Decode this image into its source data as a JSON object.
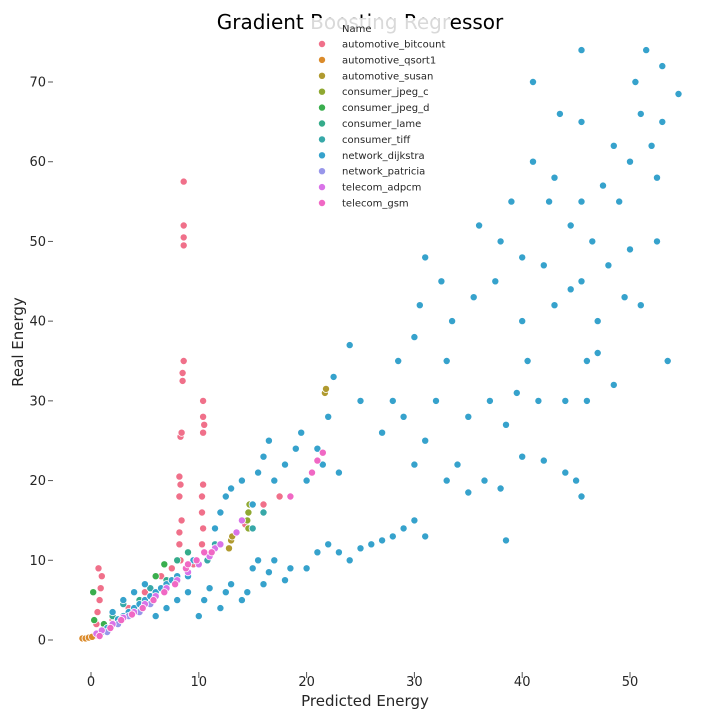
{
  "chart_data": {
    "type": "scatter",
    "title": "Gradient Boosting Regressor",
    "xlabel": "Predicted Energy",
    "ylabel": "Real Energy",
    "xlim": [
      -3,
      56
    ],
    "ylim": [
      -4,
      76
    ],
    "xticks": [
      0,
      10,
      20,
      30,
      40,
      50
    ],
    "yticks": [
      0,
      10,
      20,
      30,
      40,
      50,
      60,
      70
    ],
    "grid": false,
    "legend_position": "top-center",
    "legend_title": "Name",
    "series": [
      {
        "name": "automotive_bitcount",
        "color": "#f0708a",
        "points": [
          [
            0.3,
            0.5
          ],
          [
            0.5,
            2.0
          ],
          [
            0.6,
            3.5
          ],
          [
            0.8,
            5.0
          ],
          [
            0.9,
            6.5
          ],
          [
            1.0,
            8.0
          ],
          [
            0.7,
            9.0
          ],
          [
            1.5,
            1.2
          ],
          [
            2.0,
            2.5
          ],
          [
            3.5,
            4.0
          ],
          [
            5.0,
            6.0
          ],
          [
            6.5,
            8.0
          ],
          [
            7.5,
            9.0
          ],
          [
            8.3,
            10.0
          ],
          [
            8.2,
            12.0
          ],
          [
            8.2,
            13.5
          ],
          [
            8.4,
            15.0
          ],
          [
            8.2,
            18.0
          ],
          [
            8.3,
            19.5
          ],
          [
            8.2,
            20.5
          ],
          [
            8.3,
            25.5
          ],
          [
            8.4,
            26.0
          ],
          [
            8.5,
            32.5
          ],
          [
            8.5,
            33.5
          ],
          [
            8.6,
            35.0
          ],
          [
            8.6,
            49.5
          ],
          [
            8.6,
            50.5
          ],
          [
            8.6,
            52.0
          ],
          [
            8.6,
            57.5
          ],
          [
            10.3,
            12.0
          ],
          [
            10.4,
            14.0
          ],
          [
            10.3,
            16.0
          ],
          [
            10.3,
            18.0
          ],
          [
            10.4,
            19.5
          ],
          [
            10.4,
            26.0
          ],
          [
            10.5,
            27.0
          ],
          [
            10.4,
            28.0
          ],
          [
            10.4,
            30.0
          ],
          [
            14.3,
            14.5
          ],
          [
            16.0,
            17.0
          ],
          [
            17.5,
            18.0
          ],
          [
            9.5,
            9.5
          ]
        ]
      },
      {
        "name": "automotive_qsort1",
        "color": "#db8b2b",
        "points": [
          [
            -0.8,
            0.2
          ],
          [
            -0.5,
            0.2
          ],
          [
            -0.2,
            0.3
          ],
          [
            0.1,
            0.4
          ],
          [
            4.8,
            4.2
          ]
        ]
      },
      {
        "name": "automotive_susan",
        "color": "#b09a2f",
        "points": [
          [
            12.8,
            11.5
          ],
          [
            13.0,
            12.5
          ],
          [
            13.1,
            13.0
          ],
          [
            21.7,
            31.0
          ],
          [
            21.8,
            31.5
          ]
        ]
      },
      {
        "name": "consumer_jpeg_c",
        "color": "#8fa831",
        "points": [
          [
            14.5,
            15.0
          ],
          [
            14.6,
            16.0
          ],
          [
            14.7,
            17.0
          ],
          [
            14.6,
            14.0
          ]
        ]
      },
      {
        "name": "consumer_jpeg_d",
        "color": "#3aae4e",
        "points": [
          [
            0.2,
            6.0
          ],
          [
            0.3,
            2.5
          ],
          [
            1.2,
            2.0
          ],
          [
            6.0,
            8.0
          ],
          [
            6.8,
            9.5
          ]
        ]
      },
      {
        "name": "consumer_lame",
        "color": "#35ab8a",
        "points": [
          [
            2.0,
            3.0
          ],
          [
            4.5,
            5.0
          ],
          [
            7.0,
            7.5
          ],
          [
            8.0,
            10.0
          ],
          [
            9.0,
            11.0
          ]
        ]
      },
      {
        "name": "consumer_tiff",
        "color": "#37a8a8",
        "points": [
          [
            3.0,
            4.5
          ],
          [
            5.5,
            6.5
          ],
          [
            10.8,
            10.0
          ],
          [
            11.5,
            12.0
          ],
          [
            15.0,
            14.0
          ],
          [
            16.0,
            16.0
          ]
        ]
      },
      {
        "name": "network_dijkstra",
        "color": "#36a2cc",
        "points": [
          [
            1.0,
            1.0
          ],
          [
            1.5,
            1.5
          ],
          [
            2.0,
            2.0
          ],
          [
            2.5,
            2.6
          ],
          [
            3.0,
            3.0
          ],
          [
            3.5,
            3.5
          ],
          [
            4.0,
            4.0
          ],
          [
            4.5,
            4.5
          ],
          [
            5.0,
            5.0
          ],
          [
            5.5,
            5.5
          ],
          [
            6.0,
            6.0
          ],
          [
            6.5,
            6.5
          ],
          [
            7.0,
            7.0
          ],
          [
            7.5,
            7.5
          ],
          [
            8.0,
            8.0
          ],
          [
            2.0,
            3.5
          ],
          [
            3.0,
            5.0
          ],
          [
            4.0,
            6.0
          ],
          [
            5.0,
            7.0
          ],
          [
            6.0,
            3.0
          ],
          [
            7.0,
            4.0
          ],
          [
            8.0,
            5.0
          ],
          [
            9.0,
            6.0
          ],
          [
            9.0,
            8.0
          ],
          [
            9.5,
            10.0
          ],
          [
            10.0,
            3.0
          ],
          [
            10.5,
            5.0
          ],
          [
            11.0,
            6.5
          ],
          [
            12.0,
            4.0
          ],
          [
            12.5,
            6.0
          ],
          [
            13.0,
            7.0
          ],
          [
            14.0,
            5.0
          ],
          [
            14.5,
            6.0
          ],
          [
            15.0,
            9.0
          ],
          [
            15.5,
            10.0
          ],
          [
            16.0,
            7.0
          ],
          [
            16.5,
            8.5
          ],
          [
            17.0,
            10.0
          ],
          [
            18.0,
            7.5
          ],
          [
            18.5,
            9.0
          ],
          [
            20.0,
            9.0
          ],
          [
            21.0,
            11.0
          ],
          [
            22.0,
            12.0
          ],
          [
            23.0,
            11.0
          ],
          [
            24.0,
            10.0
          ],
          [
            25.0,
            11.5
          ],
          [
            26.0,
            12.0
          ],
          [
            27.0,
            12.5
          ],
          [
            28.0,
            13.0
          ],
          [
            29.0,
            14.0
          ],
          [
            30.0,
            15.0
          ],
          [
            31.0,
            13.0
          ],
          [
            11.5,
            14.0
          ],
          [
            12.0,
            16.0
          ],
          [
            12.5,
            18.0
          ],
          [
            13.0,
            19.0
          ],
          [
            14.0,
            20.0
          ],
          [
            15.0,
            17.0
          ],
          [
            15.5,
            21.0
          ],
          [
            16.0,
            23.0
          ],
          [
            16.5,
            25.0
          ],
          [
            17.0,
            20.0
          ],
          [
            18.0,
            22.0
          ],
          [
            19.0,
            24.0
          ],
          [
            19.5,
            26.0
          ],
          [
            20.0,
            20.0
          ],
          [
            21.0,
            24.0
          ],
          [
            21.5,
            22.0
          ],
          [
            22.0,
            28.0
          ],
          [
            22.5,
            33.0
          ],
          [
            23.0,
            21.0
          ],
          [
            24.0,
            37.0
          ],
          [
            25.0,
            30.0
          ],
          [
            27.0,
            26.0
          ],
          [
            28.0,
            30.0
          ],
          [
            28.5,
            35.0
          ],
          [
            29.0,
            28.0
          ],
          [
            30.0,
            38.0
          ],
          [
            30.5,
            42.0
          ],
          [
            31.0,
            48.0
          ],
          [
            32.0,
            30.0
          ],
          [
            32.5,
            45.0
          ],
          [
            33.0,
            35.0
          ],
          [
            33.5,
            40.0
          ],
          [
            34.0,
            22.0
          ],
          [
            35.0,
            28.0
          ],
          [
            35.5,
            43.0
          ],
          [
            36.0,
            52.0
          ],
          [
            36.5,
            20.0
          ],
          [
            37.0,
            30.0
          ],
          [
            37.5,
            45.0
          ],
          [
            38.0,
            50.0
          ],
          [
            38.5,
            27.0
          ],
          [
            39.0,
            55.0
          ],
          [
            40.0,
            40.0
          ],
          [
            40.0,
            48.0
          ],
          [
            41.0,
            60.0
          ],
          [
            41.0,
            70.0
          ],
          [
            41.5,
            30.0
          ],
          [
            42.0,
            47.0
          ],
          [
            42.5,
            55.0
          ],
          [
            43.0,
            58.0
          ],
          [
            43.5,
            66.0
          ],
          [
            44.0,
            30.0
          ],
          [
            44.5,
            44.0
          ],
          [
            45.0,
            20.0
          ],
          [
            45.5,
            45.0
          ],
          [
            45.5,
            55.0
          ],
          [
            45.5,
            65.0
          ],
          [
            45.5,
            74.0
          ],
          [
            46.0,
            35.0
          ],
          [
            46.5,
            50.0
          ],
          [
            47.0,
            40.0
          ],
          [
            47.5,
            57.0
          ],
          [
            48.0,
            47.0
          ],
          [
            48.5,
            62.0
          ],
          [
            49.0,
            55.0
          ],
          [
            49.5,
            43.0
          ],
          [
            50.0,
            60.0
          ],
          [
            50.5,
            70.0
          ],
          [
            51.0,
            66.0
          ],
          [
            51.5,
            74.0
          ],
          [
            52.0,
            62.0
          ],
          [
            52.5,
            50.0
          ],
          [
            53.0,
            72.0
          ],
          [
            53.5,
            35.0
          ],
          [
            54.5,
            68.5
          ],
          [
            39.5,
            31.0
          ],
          [
            40.5,
            35.0
          ],
          [
            43.0,
            42.0
          ],
          [
            44.5,
            52.0
          ],
          [
            46.0,
            30.0
          ],
          [
            47.0,
            36.0
          ],
          [
            48.5,
            32.0
          ],
          [
            50.0,
            49.0
          ],
          [
            51.0,
            42.0
          ],
          [
            52.5,
            58.0
          ],
          [
            53.0,
            65.0
          ],
          [
            30.0,
            22.0
          ],
          [
            31.0,
            25.0
          ],
          [
            33.0,
            20.0
          ],
          [
            35.0,
            18.5
          ],
          [
            38.0,
            19.0
          ],
          [
            40.0,
            23.0
          ],
          [
            42.0,
            22.5
          ],
          [
            44.0,
            21.0
          ],
          [
            45.5,
            18.0
          ],
          [
            38.5,
            12.5
          ]
        ]
      },
      {
        "name": "network_patricia",
        "color": "#9896ea",
        "points": [
          [
            1.5,
            1.0
          ],
          [
            2.5,
            2.0
          ],
          [
            3.5,
            3.0
          ],
          [
            4.5,
            3.5
          ],
          [
            5.5,
            4.5
          ]
        ]
      },
      {
        "name": "telecom_adpcm",
        "color": "#d973e8",
        "points": [
          [
            0.5,
            0.8
          ],
          [
            1.0,
            1.2
          ],
          [
            2.0,
            2.0
          ],
          [
            3.0,
            2.8
          ],
          [
            4.0,
            3.5
          ],
          [
            5.0,
            4.5
          ],
          [
            6.0,
            5.5
          ],
          [
            7.0,
            6.5
          ],
          [
            8.0,
            7.5
          ],
          [
            9.0,
            8.5
          ],
          [
            10.0,
            9.5
          ],
          [
            11.0,
            10.5
          ],
          [
            11.5,
            11.5
          ],
          [
            12.0,
            12.0
          ],
          [
            13.5,
            13.5
          ],
          [
            14.0,
            15.0
          ]
        ]
      },
      {
        "name": "telecom_gsm",
        "color": "#f068c4",
        "points": [
          [
            0.8,
            0.5
          ],
          [
            1.8,
            1.5
          ],
          [
            2.8,
            2.5
          ],
          [
            3.8,
            3.2
          ],
          [
            4.8,
            4.0
          ],
          [
            5.8,
            5.0
          ],
          [
            6.8,
            6.0
          ],
          [
            7.8,
            7.0
          ],
          [
            8.8,
            9.0
          ],
          [
            9.8,
            10.0
          ],
          [
            10.5,
            11.0
          ],
          [
            11.2,
            11.0
          ],
          [
            18.5,
            18.0
          ],
          [
            20.5,
            21.0
          ],
          [
            21.0,
            22.5
          ],
          [
            21.5,
            23.5
          ],
          [
            9.0,
            9.5
          ]
        ]
      }
    ]
  }
}
